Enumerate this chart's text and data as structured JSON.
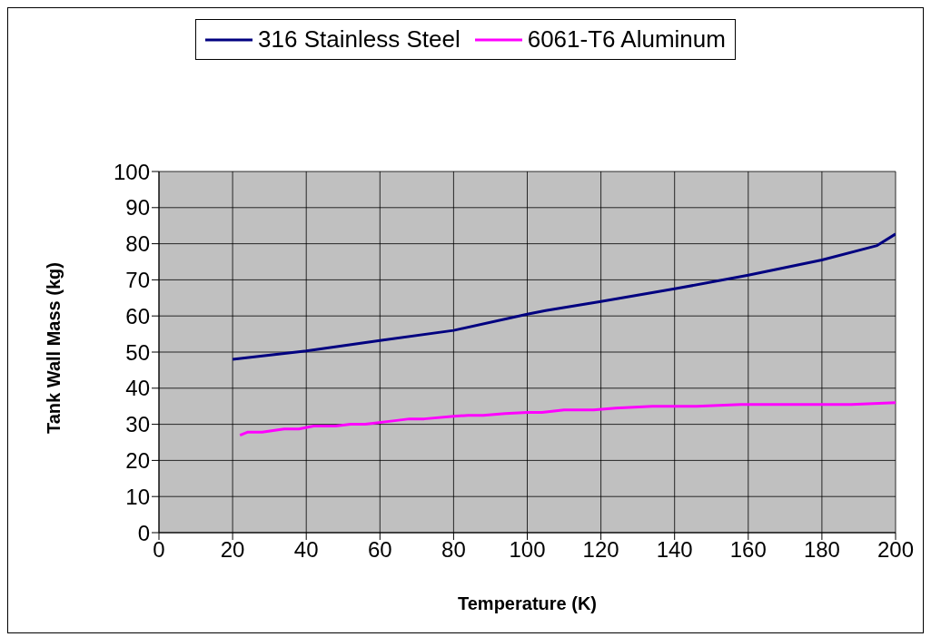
{
  "chart_data": {
    "type": "line",
    "xlabel": "Temperature (K)",
    "ylabel": "Tank Wall Mass (kg)",
    "xlim": [
      0,
      200
    ],
    "xticks": [
      0,
      20,
      40,
      60,
      80,
      100,
      120,
      140,
      160,
      180,
      200
    ],
    "ylim": [
      0,
      100
    ],
    "yticks": [
      0,
      10,
      20,
      30,
      40,
      50,
      60,
      70,
      80,
      90,
      100
    ],
    "grid": true,
    "legend": "top",
    "marker": "none",
    "line_style": "solid",
    "series": [
      {
        "name": "316 Stainless Steel",
        "color": "#000080",
        "x": [
          20,
          40,
          60,
          80,
          100,
          105,
          120,
          140,
          160,
          180,
          195,
          200
        ],
        "values": [
          48,
          50.3,
          53.2,
          56,
          60.5,
          61.5,
          64,
          67.5,
          71.3,
          75.5,
          79.5,
          82.7
        ]
      },
      {
        "name": "6061-T6 Aluminum",
        "color": "#ff00ff",
        "x": [
          22,
          24,
          28,
          34,
          38,
          42,
          48,
          52,
          56,
          64,
          68,
          72,
          80,
          84,
          88,
          94,
          100,
          104,
          110,
          118,
          124,
          134,
          146,
          158,
          170,
          188,
          200
        ],
        "values": [
          27,
          27.8,
          27.8,
          28.7,
          28.7,
          29.5,
          29.5,
          30,
          30,
          31,
          31.5,
          31.5,
          32.2,
          32.5,
          32.5,
          33,
          33.3,
          33.3,
          34,
          34,
          34.5,
          35,
          35,
          35.5,
          35.5,
          35.5,
          36
        ]
      }
    ]
  }
}
